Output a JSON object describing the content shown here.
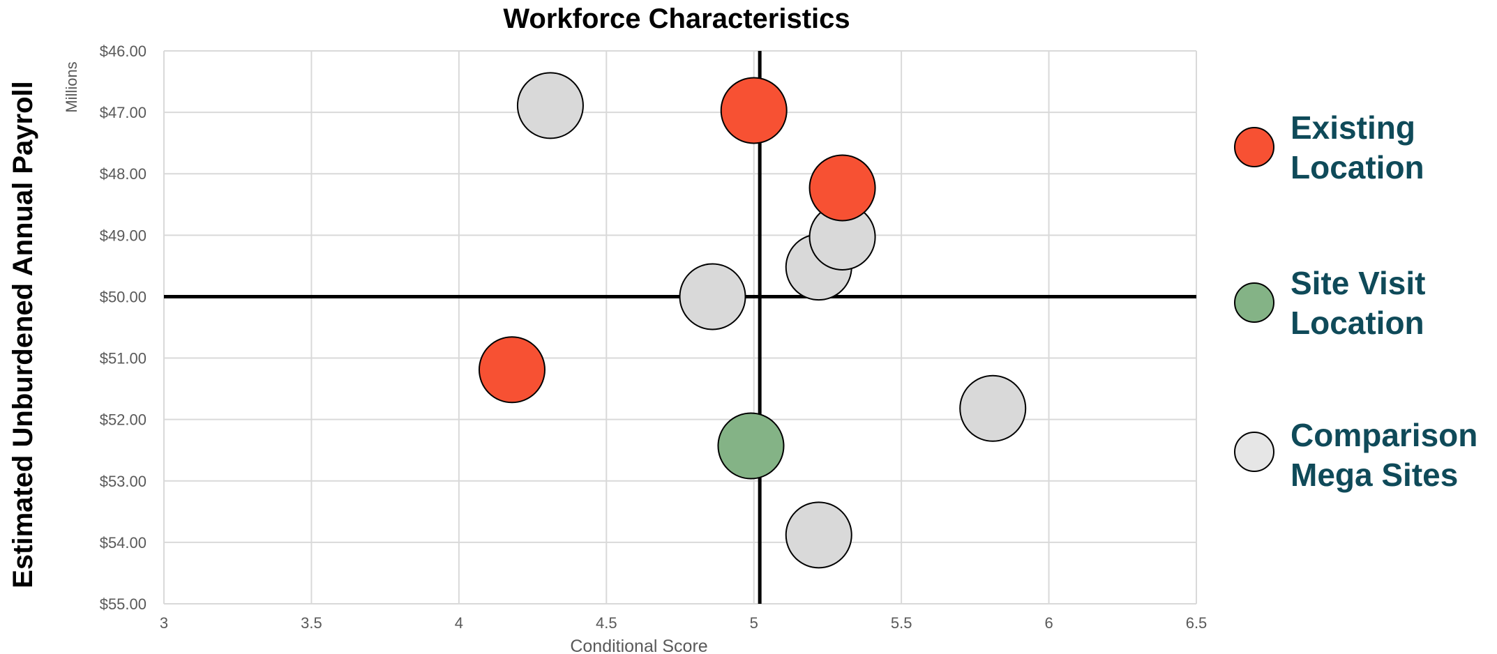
{
  "chart_data": {
    "type": "scatter",
    "title": "Workforce Characteristics",
    "xlabel": "Conditional Score",
    "ylabel": "Estimated Unburdened Annual Payroll",
    "y_display_units": "Millions",
    "xlim": [
      3,
      6.5
    ],
    "ylim": [
      46,
      55
    ],
    "y_axis_reversed": true,
    "x_ticks": [
      "3",
      "3.5",
      "4",
      "4.5",
      "5",
      "5.5",
      "6",
      "6.5"
    ],
    "y_ticks": [
      "$46.00",
      "$47.00",
      "$48.00",
      "$49.00",
      "$50.00",
      "$51.00",
      "$52.00",
      "$53.00",
      "$54.00",
      "$55.00"
    ],
    "grid": true,
    "crosshair": {
      "x": 5.02,
      "y": 50.0
    },
    "legend_position": "right",
    "series": [
      {
        "name": "Existing Location",
        "color": "#f75133",
        "points": [
          {
            "x": 5.0,
            "y": 46.97
          },
          {
            "x": 5.3,
            "y": 48.23
          },
          {
            "x": 4.18,
            "y": 51.19
          }
        ]
      },
      {
        "name": "Site Visit Location",
        "color": "#84b386",
        "points": [
          {
            "x": 4.99,
            "y": 52.43
          }
        ]
      },
      {
        "name": "Comparison Mega Sites",
        "color": "#d9d9d9",
        "points": [
          {
            "x": 4.31,
            "y": 46.89
          },
          {
            "x": 5.22,
            "y": 49.52
          },
          {
            "x": 5.3,
            "y": 49.03
          },
          {
            "x": 4.86,
            "y": 50.0
          },
          {
            "x": 5.81,
            "y": 51.82
          },
          {
            "x": 5.22,
            "y": 53.88
          }
        ]
      }
    ]
  },
  "legend": {
    "items": [
      {
        "line1": "Existing",
        "line2": "Location",
        "color": "#f75133"
      },
      {
        "line1": "Site Visit",
        "line2": "Location",
        "color": "#84b386"
      },
      {
        "line1": "Comparison",
        "line2": "Mega Sites",
        "color": "#e6e6e6"
      }
    ]
  }
}
